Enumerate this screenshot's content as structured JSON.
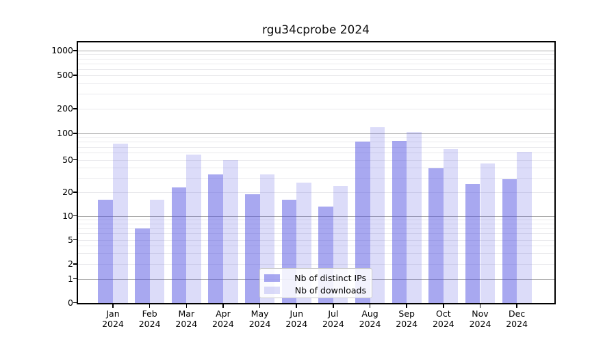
{
  "title": "rgu34cprobe 2024",
  "chart_data": {
    "type": "bar",
    "title": "rgu34cprobe 2024",
    "categories": [
      "Jan 2024",
      "Feb 2024",
      "Mar 2024",
      "Apr 2024",
      "May 2024",
      "Jun 2024",
      "Jul 2024",
      "Aug 2024",
      "Sep 2024",
      "Oct 2024",
      "Nov 2024",
      "Dec 2024"
    ],
    "series": [
      {
        "name": "Nb of distinct IPs",
        "color": "rgba(81,81,225,0.5)",
        "values": [
          16,
          7,
          23,
          33,
          19,
          16,
          13,
          80,
          82,
          39,
          25,
          29
        ]
      },
      {
        "name": "Nb of downloads",
        "color": "rgba(81,81,225,0.2)",
        "values": [
          77,
          16,
          57,
          50,
          33,
          26,
          24,
          120,
          103,
          66,
          45,
          61
        ]
      }
    ],
    "xlabel": "",
    "ylabel": "",
    "yscale": "symlog",
    "ylim": [
      0,
      1400
    ],
    "yticks": [
      0,
      1,
      2,
      5,
      10,
      20,
      50,
      100,
      200,
      500,
      1000
    ],
    "ytick_labels": [
      "0",
      "1",
      "2",
      "5",
      "10",
      "20",
      "50",
      "100",
      "200",
      "500",
      "1000"
    ],
    "grid": true,
    "legend_position": "lower center"
  },
  "colors": {
    "bar_distinct_ips": "rgba(81,81,225,0.5)",
    "bar_downloads": "rgba(81,81,225,0.2)",
    "grid_major": "#ababab",
    "grid_minor": "#e9e9ec",
    "spine": "#000000",
    "legend_border": "#cccccc"
  }
}
